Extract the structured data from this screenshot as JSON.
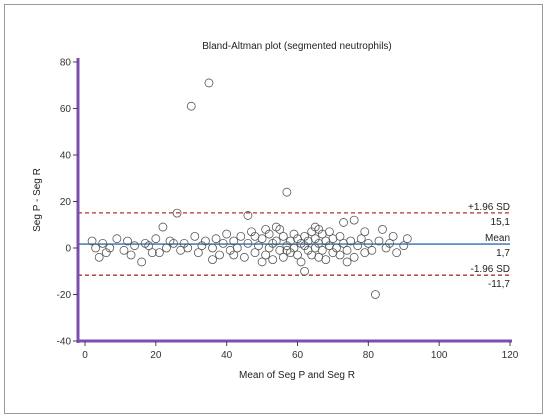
{
  "chart_data": {
    "type": "scatter",
    "title": "Bland-Altman plot (segmented neutrophils)",
    "xlabel": "Mean of Seg P and Seg R",
    "ylabel": "Seg P - Seg R",
    "xlim": [
      0,
      120
    ],
    "ylim": [
      -40,
      80
    ],
    "x_ticks": [
      "0",
      "20",
      "40",
      "60",
      "80",
      "100",
      "120"
    ],
    "y_ticks": [
      "80",
      "60",
      "40",
      "20",
      "0",
      "-20",
      "-40"
    ],
    "grid": false,
    "colors": {
      "axis": "#7b4fb0",
      "mean_line": "#2f6fb0",
      "sd_line": "#b03030",
      "marker": "#555555"
    },
    "reference_lines": [
      {
        "id": "upper",
        "value": 15.1,
        "top_label": "+1.96 SD",
        "bottom_label": "15,1"
      },
      {
        "id": "mean",
        "value": 1.7,
        "top_label": "Mean",
        "bottom_label": "1,7"
      },
      {
        "id": "lower",
        "value": -11.7,
        "top_label": "-1.96 SD",
        "bottom_label": "-11,7"
      }
    ],
    "points": [
      [
        30,
        61
      ],
      [
        35,
        71
      ],
      [
        57,
        24
      ],
      [
        82,
        -20
      ],
      [
        62,
        -10
      ],
      [
        16,
        -6
      ],
      [
        26,
        15
      ],
      [
        46,
        14
      ],
      [
        73,
        11
      ],
      [
        76,
        12
      ],
      [
        22,
        9
      ],
      [
        51,
        8
      ],
      [
        55,
        8
      ],
      [
        66,
        8
      ],
      [
        84,
        8
      ],
      [
        2,
        3
      ],
      [
        4,
        -4
      ],
      [
        5,
        2
      ],
      [
        7,
        0
      ],
      [
        9,
        4
      ],
      [
        11,
        -1
      ],
      [
        12,
        3
      ],
      [
        14,
        1
      ],
      [
        17,
        2
      ],
      [
        19,
        -2
      ],
      [
        20,
        4
      ],
      [
        23,
        0
      ],
      [
        24,
        3
      ],
      [
        27,
        -1
      ],
      [
        28,
        2
      ],
      [
        31,
        5
      ],
      [
        32,
        -2
      ],
      [
        33,
        1
      ],
      [
        34,
        3
      ],
      [
        36,
        0
      ],
      [
        37,
        4
      ],
      [
        38,
        -3
      ],
      [
        39,
        2
      ],
      [
        40,
        6
      ],
      [
        41,
        -1
      ],
      [
        42,
        3
      ],
      [
        43,
        0
      ],
      [
        44,
        5
      ],
      [
        45,
        -4
      ],
      [
        46,
        2
      ],
      [
        47,
        7
      ],
      [
        48,
        -2
      ],
      [
        49,
        1
      ],
      [
        50,
        4
      ],
      [
        50,
        -6
      ],
      [
        51,
        -3
      ],
      [
        52,
        6
      ],
      [
        52,
        0
      ],
      [
        53,
        2
      ],
      [
        53,
        -5
      ],
      [
        54,
        9
      ],
      [
        54,
        3
      ],
      [
        55,
        -1
      ],
      [
        56,
        5
      ],
      [
        56,
        -4
      ],
      [
        57,
        1
      ],
      [
        58,
        3
      ],
      [
        58,
        -2
      ],
      [
        59,
        6
      ],
      [
        59,
        0
      ],
      [
        60,
        -3
      ],
      [
        60,
        4
      ],
      [
        61,
        2
      ],
      [
        61,
        -6
      ],
      [
        62,
        5
      ],
      [
        62,
        1
      ],
      [
        63,
        -1
      ],
      [
        63,
        3
      ],
      [
        64,
        7
      ],
      [
        64,
        -3
      ],
      [
        65,
        0
      ],
      [
        65,
        4
      ],
      [
        66,
        -4
      ],
      [
        66,
        2
      ],
      [
        67,
        6
      ],
      [
        67,
        -1
      ],
      [
        68,
        3
      ],
      [
        68,
        -5
      ],
      [
        69,
        1
      ],
      [
        70,
        4
      ],
      [
        70,
        -2
      ],
      [
        71,
        0
      ],
      [
        72,
        5
      ],
      [
        72,
        -3
      ],
      [
        73,
        2
      ],
      [
        74,
        -1
      ],
      [
        75,
        3
      ],
      [
        76,
        -4
      ],
      [
        77,
        1
      ],
      [
        78,
        4
      ],
      [
        79,
        -2
      ],
      [
        80,
        2
      ],
      [
        81,
        -1
      ],
      [
        83,
        3
      ],
      [
        85,
        0
      ],
      [
        86,
        2
      ],
      [
        88,
        -2
      ],
      [
        90,
        1
      ],
      [
        91,
        4
      ],
      [
        3,
        0
      ],
      [
        6,
        -2
      ],
      [
        13,
        -3
      ],
      [
        18,
        1
      ],
      [
        21,
        -2
      ],
      [
        25,
        2
      ],
      [
        29,
        0
      ],
      [
        36,
        -5
      ],
      [
        42,
        -3
      ],
      [
        48,
        5
      ],
      [
        57,
        -1
      ],
      [
        65,
        9
      ],
      [
        69,
        7
      ],
      [
        74,
        -6
      ],
      [
        79,
        7
      ],
      [
        87,
        5
      ]
    ]
  }
}
